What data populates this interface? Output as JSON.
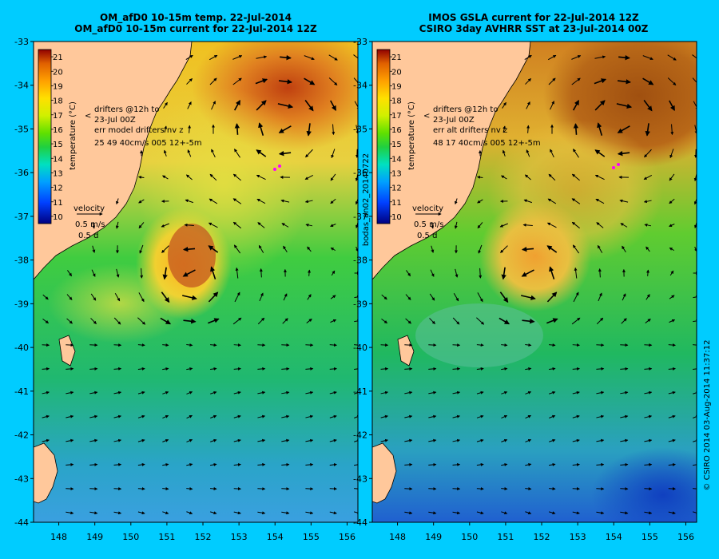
{
  "left_panel": {
    "title_line1": "OM_afD0 10-15m temp. 22-Jul-2014",
    "title_line2": "OM_afD0 10-15m current for 22-Jul-2014 12Z",
    "colorbar_label": "temperature (°C)",
    "drifters_line1": "drifters @12h to",
    "drifters_line2": "23-Jul 00Z",
    "err_line1": "err model drifters nv z",
    "err_line2": "25   49    40cm/s 005 12+-5m",
    "velocity_label": "velocity",
    "velocity_speed": "0.5 m/s",
    "velocity_time": "0.5 d"
  },
  "right_panel": {
    "title_line1": "IMOS GSLA current for 22-Jul-2014 12Z",
    "title_line2": "CSIRO 3day AVHRR SST at 23-Jul-2014 00Z",
    "colorbar_label": "temperature (°C)",
    "drifters_line1": "drifters @12h to",
    "drifters_line2": "23-Jul 00Z",
    "err_line1": "err alt drifters nv z",
    "err_line2": "48 17 40cm/s 005 12+-5m",
    "velocity_label": "velocity",
    "velocity_speed": "0.5 m/s",
    "velocity_time": "0.5 d"
  },
  "vertical_label_middle": "bodas_an02_20140722",
  "vertical_label_right": "© CSIRO 2014  03-Aug-2014 11:37:12",
  "colorbar_ticks": [
    "10",
    "11",
    "12",
    "13",
    "14",
    "15",
    "16",
    "17",
    "18",
    "19",
    "20",
    "21"
  ],
  "lat_ticks": [
    "-33",
    "-34",
    "-35",
    "-36",
    "-37",
    "-38",
    "-39",
    "-40",
    "-41",
    "-42",
    "-43",
    "-44"
  ],
  "lon_ticks": [
    "148",
    "149",
    "150",
    "151",
    "152",
    "153",
    "154",
    "155",
    "156"
  ],
  "map_extent": {
    "lon": [
      147.3,
      156.3
    ],
    "lat": [
      -44,
      -33
    ]
  },
  "colors": {
    "background": "#00ccff",
    "land": "#ffc89b",
    "drifter": "#ff00ff"
  }
}
